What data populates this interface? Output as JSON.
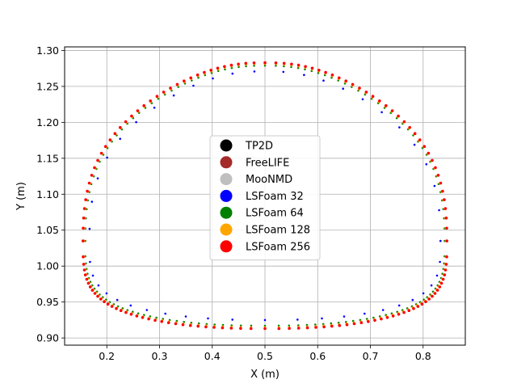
{
  "chart_data": {
    "type": "scatter",
    "xlabel": "X (m)",
    "ylabel": "Y (m)",
    "xlim": [
      0.12,
      0.88
    ],
    "ylim": [
      0.89,
      1.305
    ],
    "xticks": [
      "0.2",
      "0.3",
      "0.4",
      "0.5",
      "0.6",
      "0.7",
      "0.8"
    ],
    "yticks": [
      "0.90",
      "0.95",
      "1.00",
      "1.05",
      "1.10",
      "1.15",
      "1.20",
      "1.25",
      "1.30"
    ],
    "grid": true,
    "legend_position": "center",
    "bubble_shape": {
      "center_x": 0.5,
      "top_y": 1.283,
      "bottom_y": 0.913,
      "left_x": 0.155,
      "right_x": 0.845
    },
    "series": [
      {
        "name": "TP2D",
        "color": "#000000",
        "offset": 0.0
      },
      {
        "name": "FreeLIFE",
        "color": "#a52a2a",
        "offset": 0.0
      },
      {
        "name": "MooNMD",
        "color": "#bfbfbf",
        "offset": 0.0
      },
      {
        "name": "LSFoam 32",
        "color": "#0000ff",
        "offset": -0.012
      },
      {
        "name": "LSFoam 64",
        "color": "#008000",
        "offset": -0.004
      },
      {
        "name": "LSFoam 128",
        "color": "#ffa500",
        "offset": -0.002
      },
      {
        "name": "LSFoam 256",
        "color": "#ff0000",
        "offset": 0.0
      }
    ]
  }
}
